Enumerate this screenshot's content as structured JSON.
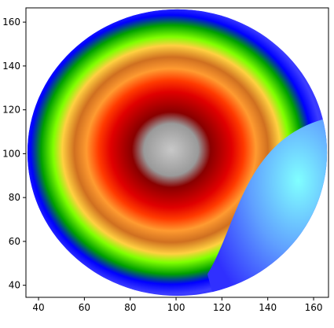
{
  "chart_data": {
    "type": "image",
    "xlim": [
      34.5,
      166.5
    ],
    "ylim": [
      34.5,
      166.5
    ],
    "xticks": [
      40,
      60,
      80,
      100,
      120,
      140,
      160
    ],
    "yticks": [
      40,
      60,
      80,
      100,
      120,
      140,
      160
    ]
  }
}
